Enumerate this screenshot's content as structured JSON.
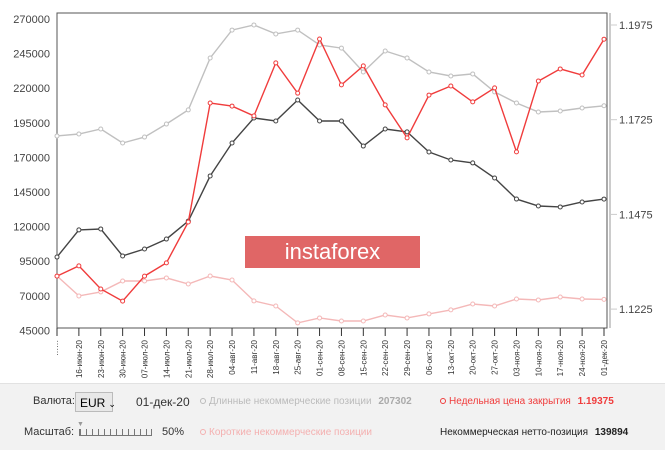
{
  "chart_data": {
    "type": "line",
    "x": [
      "09-июн-20",
      "16-июн-20",
      "23-июн-20",
      "30-июн-20",
      "07-июл-20",
      "14-июл-20",
      "21-июл-20",
      "28-июл-20",
      "04-авг-20",
      "11-авг-20",
      "18-авг-20",
      "25-авг-20",
      "01-сен-20",
      "08-сен-20",
      "15-сен-20",
      "22-сен-20",
      "29-сен-20",
      "06-окт-20",
      "13-окт-20",
      "20-окт-20",
      "27-окт-20",
      "03-ноя-20",
      "10-ноя-20",
      "17-ноя-20",
      "24-ноя-20",
      "01-дек-20"
    ],
    "left_ticks": [
      "270000",
      "245000",
      "220000",
      "195000",
      "170000",
      "145000",
      "120000",
      "95000",
      "70000",
      "45000"
    ],
    "right_ticks": [
      "1.1975",
      "1.1725",
      "1.1475",
      "1.1225"
    ],
    "ylim": [
      45000,
      270000
    ],
    "y2lim": [
      1.1225,
      1.1975
    ],
    "series": [
      {
        "name": "Длинные некоммерческие позиции",
        "axis": "left",
        "color": "#c0c0c0",
        "values": [
          185500,
          186900,
          190500,
          180400,
          184700,
          194100,
          204300,
          241800,
          262000,
          265700,
          259200,
          262000,
          251200,
          249000,
          231700,
          246900,
          241800,
          231700,
          228800,
          230300,
          217300,
          209300,
          202800,
          203500,
          205700,
          207302
        ]
      },
      {
        "name": "Короткие некоммерческие позиции",
        "axis": "left",
        "color": "#f4b8b8",
        "values": [
          84300,
          69900,
          72800,
          80700,
          80700,
          82900,
          78500,
          84300,
          81400,
          66300,
          62600,
          50400,
          54000,
          51800,
          51800,
          56100,
          54000,
          56900,
          59800,
          64100,
          62600,
          67700,
          67000,
          69100,
          67700,
          67408
        ]
      },
      {
        "name": "Некоммерческая нетто-позиция",
        "axis": "left",
        "color": "#444444",
        "values": [
          98000,
          117600,
          118300,
          98800,
          103800,
          111000,
          124000,
          156600,
          180400,
          198500,
          196300,
          211500,
          196300,
          196300,
          178200,
          190500,
          188400,
          173900,
          168100,
          166000,
          155100,
          139900,
          134900,
          134200,
          137800,
          139894
        ]
      },
      {
        "name": "Недельная цена закрытия",
        "axis": "right",
        "color": "#f03c3c",
        "values": [
          1.1312,
          1.1339,
          1.1278,
          1.1246,
          1.1312,
          1.1347,
          1.1455,
          1.1769,
          1.1761,
          1.1735,
          1.1875,
          1.1795,
          1.1938,
          1.1817,
          1.1867,
          1.1764,
          1.1677,
          1.179,
          1.1814,
          1.1772,
          1.1809,
          1.164,
          1.1827,
          1.1859,
          1.1843,
          1.19375
        ]
      }
    ]
  },
  "controls": {
    "currency_label": "Валюта:",
    "currency_value": "EUR",
    "date": "01-дек-20",
    "scale_label": "Масштаб:",
    "scale_value": "50%",
    "long_label": "Длинные некоммерческие позиции",
    "long_value": "207302",
    "price_label": "Недельная цена закрытия",
    "price_value": "1.19375",
    "short_label": "Короткие некоммерческие позиции",
    "net_label": "Некоммерческая нетто-позиция",
    "net_value": "139894"
  },
  "watermark": "instaforex"
}
